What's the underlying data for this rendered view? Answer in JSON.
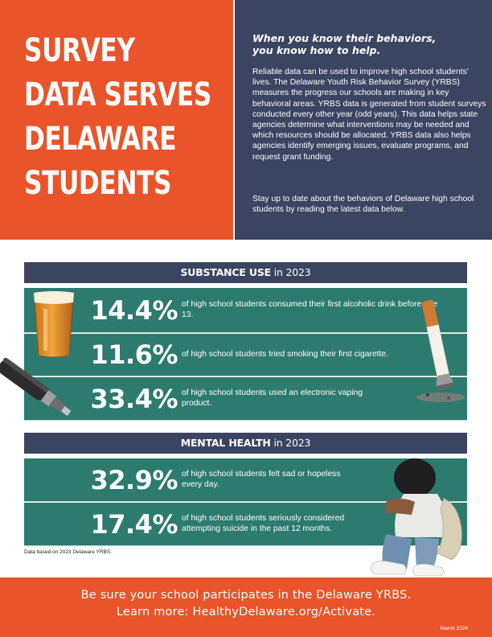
{
  "header": {
    "title_lines": [
      "SURVEY",
      "DATA SERVES",
      "DELAWARE",
      "STUDENTS"
    ],
    "tagline_line1": "When you know their behaviors,",
    "tagline_line2": "you know how to help.",
    "intro_paragraph": "Reliable data can be used to improve high school students' lives. The Delaware Youth Risk Behavior Survey (YRBS) measures the progress our schools are making in key behavioral areas. YRBS data is generated from student surveys conducted every other year (odd years). This data helps state agencies determine what interventions may be needed and which resources should be allocated. YRBS data also helps agencies identify emerging issues, evaluate programs, and request grant funding.",
    "intro_paragraph_2": "Stay up to date about the behaviors of Delaware high school students by reading the latest data below."
  },
  "substance_use": {
    "heading_bold": "SUBSTANCE USE",
    "heading_rest": " in 2023",
    "stats": [
      {
        "value": "14.4%",
        "text": "of high school students consumed their first alcoholic drink before age 13."
      },
      {
        "value": "11.6%",
        "text": "of high school students tried smoking their first cigarette."
      },
      {
        "value": "33.4%",
        "text": "of high school students used an electronic vaping product."
      }
    ]
  },
  "mental_health": {
    "heading_bold": "MENTAL HEALTH",
    "heading_rest": " in 2023",
    "stats": [
      {
        "value": "32.9%",
        "text": "of high school students felt sad or hopeless every day."
      },
      {
        "value": "17.4%",
        "text": "of high school students seriously considered attempting suicide in the past 12 months."
      }
    ]
  },
  "footnote": "Data based on 2023 Delaware YRBS.",
  "footer": {
    "cta_line1": "Be sure your school participates in the Delaware YRBS.",
    "cta_line2": "Learn more: HealthyDelaware.org/Activate.",
    "date": "March 2024"
  },
  "colors": {
    "orange": "#e9542a",
    "navy": "#3b4460",
    "teal": "#2d7a6f"
  },
  "images": [
    "beer-glass-photo",
    "cigarette-photo",
    "vape-pen-photo",
    "sad-student-photo"
  ]
}
